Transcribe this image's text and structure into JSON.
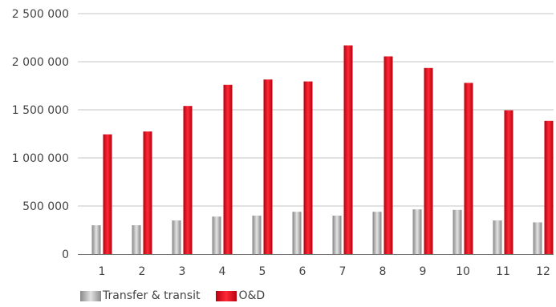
{
  "chart_data": {
    "type": "bar",
    "title": "",
    "xlabel": "",
    "ylabel": "",
    "categories": [
      "1",
      "2",
      "3",
      "4",
      "5",
      "6",
      "7",
      "8",
      "9",
      "10",
      "11",
      "12"
    ],
    "series": [
      {
        "name": "Transfer & transit",
        "color": "#a8a8a8",
        "values": [
          300000,
          300000,
          350000,
          390000,
          400000,
          440000,
          400000,
          440000,
          465000,
          460000,
          350000,
          330000
        ]
      },
      {
        "name": "O&D",
        "color": "#e8111c",
        "values": [
          1245000,
          1275000,
          1540000,
          1760000,
          1815000,
          1795000,
          2170000,
          2055000,
          1935000,
          1780000,
          1495000,
          1385000
        ]
      }
    ],
    "ylim": [
      0,
      2500000
    ],
    "yticks": [
      0,
      500000,
      1000000,
      1500000,
      2000000,
      2500000
    ],
    "ytick_labels": [
      "0",
      "500 000",
      "1 000 000",
      "1 500 000",
      "2 000 000",
      "2 500 000"
    ],
    "grid": true,
    "legend_position": "bottom-left"
  }
}
